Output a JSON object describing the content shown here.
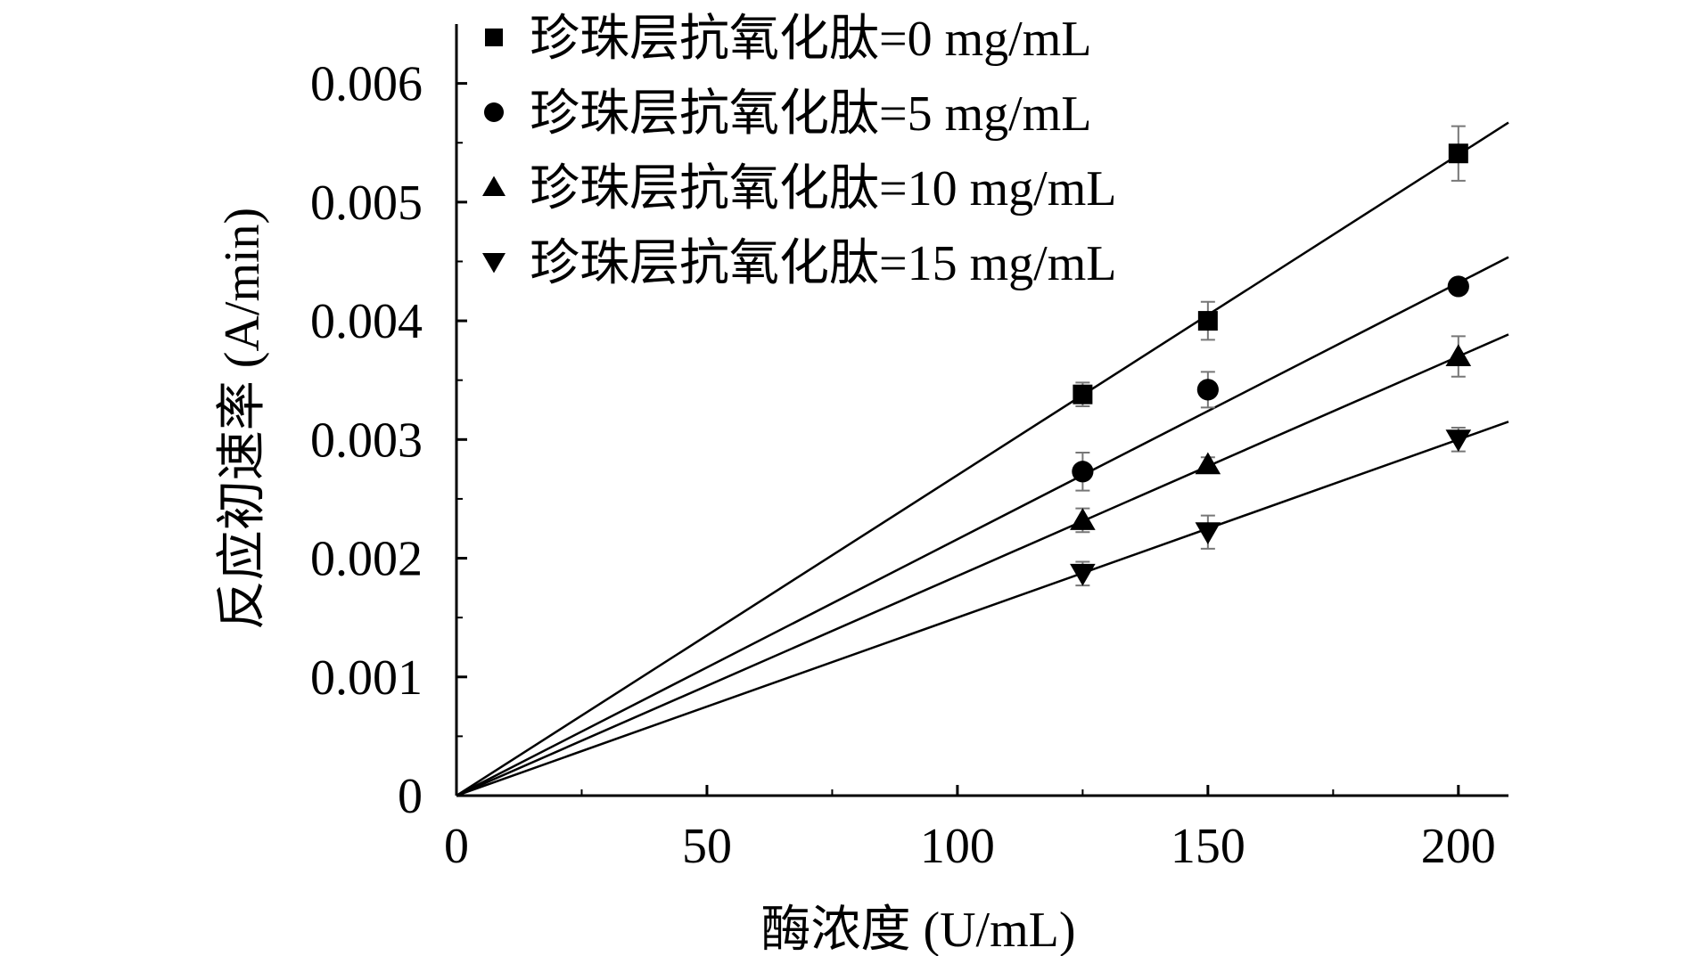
{
  "chart_data": {
    "type": "line",
    "xlabel": "酶浓度 (U/mL)",
    "ylabel": "反应初速率 (A/min)",
    "xlim": [
      0,
      210
    ],
    "ylim": [
      0,
      0.0065
    ],
    "x_ticks": [
      0,
      50,
      100,
      150,
      200
    ],
    "x_tick_labels": [
      "0",
      "50",
      "100",
      "150",
      "200"
    ],
    "y_ticks": [
      0,
      0.001,
      0.002,
      0.003,
      0.004,
      0.005,
      0.006
    ],
    "y_tick_labels": [
      "0",
      "0.001",
      "0.002",
      "0.003",
      "0.004",
      "0.005",
      "0.006"
    ],
    "grid": false,
    "legend_position": "top-left",
    "x": [
      125,
      150,
      200
    ],
    "series": [
      {
        "name": "珍珠层抗氧化肽=0 mg/mL",
        "marker": "square",
        "values": [
          0.00338,
          0.004,
          0.00541
        ],
        "errors": [
          0.0001,
          0.00016,
          0.00023
        ],
        "fit_slope": 2.7e-05
      },
      {
        "name": "珍珠层抗氧化肽=5 mg/mL",
        "marker": "circle",
        "values": [
          0.00273,
          0.00342,
          0.00429
        ],
        "errors": [
          0.00016,
          0.00015,
          5e-05
        ],
        "fit_slope": 2.16e-05
      },
      {
        "name": "珍珠层抗氧化肽=10 mg/mL",
        "marker": "triangle-up",
        "values": [
          0.00232,
          0.00279,
          0.0037
        ],
        "errors": [
          0.0001,
          6e-05,
          0.00017
        ],
        "fit_slope": 1.85e-05
      },
      {
        "name": "珍珠层抗氧化肽=15 mg/mL",
        "marker": "triangle-down",
        "values": [
          0.00187,
          0.00222,
          0.003
        ],
        "errors": [
          0.0001,
          0.00014,
          0.0001
        ],
        "fit_slope": 1.5e-05
      }
    ]
  }
}
